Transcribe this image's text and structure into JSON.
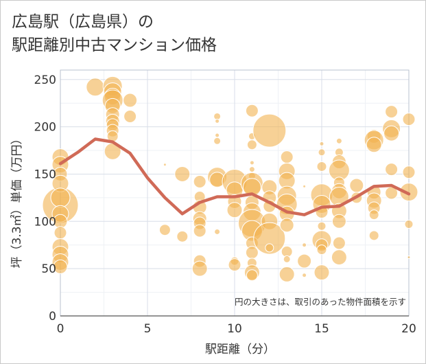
{
  "title_lines": [
    "広島駅（広島県）の",
    "駅距離別中古マンション価格"
  ],
  "note": "円の大きさは、取引のあった物件面積を示す",
  "colors": {
    "bubble": "#f2b350",
    "line": "#d06a57",
    "grid": "#d8dee8",
    "frame": "#c9c9c9"
  },
  "chart_data": {
    "type": "scatter",
    "xlabel": "駅距離（分）",
    "ylabel": "坪（3.3㎡）単価（万円）",
    "xlim": [
      0,
      20
    ],
    "ylim": [
      0,
      260
    ],
    "xticks": [
      0,
      5,
      10,
      15,
      20
    ],
    "yticks": [
      0,
      50,
      100,
      150,
      200,
      250
    ],
    "grid": true,
    "bubbles": [
      {
        "x": 0,
        "y": 117,
        "s": 26
      },
      {
        "x": 0,
        "y": 168,
        "s": 12
      },
      {
        "x": 0,
        "y": 160,
        "s": 12
      },
      {
        "x": 0,
        "y": 150,
        "s": 10
      },
      {
        "x": 0,
        "y": 140,
        "s": 12
      },
      {
        "x": 0,
        "y": 125,
        "s": 14
      },
      {
        "x": 0,
        "y": 108,
        "s": 12
      },
      {
        "x": 0,
        "y": 100,
        "s": 10
      },
      {
        "x": 0,
        "y": 88,
        "s": 9
      },
      {
        "x": 0,
        "y": 73,
        "s": 12
      },
      {
        "x": 0,
        "y": 65,
        "s": 12
      },
      {
        "x": 0,
        "y": 57,
        "s": 12
      },
      {
        "x": 0,
        "y": 52,
        "s": 10
      },
      {
        "x": 2,
        "y": 242,
        "s": 13
      },
      {
        "x": 3,
        "y": 243,
        "s": 14
      },
      {
        "x": 3,
        "y": 237,
        "s": 13
      },
      {
        "x": 3,
        "y": 232,
        "s": 12
      },
      {
        "x": 3,
        "y": 228,
        "s": 15
      },
      {
        "x": 3,
        "y": 222,
        "s": 11
      },
      {
        "x": 3,
        "y": 213,
        "s": 10
      },
      {
        "x": 3,
        "y": 206,
        "s": 10
      },
      {
        "x": 3,
        "y": 202,
        "s": 9
      },
      {
        "x": 3,
        "y": 196,
        "s": 9
      },
      {
        "x": 3,
        "y": 190,
        "s": 8
      },
      {
        "x": 3,
        "y": 174,
        "s": 12
      },
      {
        "x": 4,
        "y": 228,
        "s": 10
      },
      {
        "x": 4,
        "y": 211,
        "s": 9
      },
      {
        "x": 6,
        "y": 160,
        "s": 2
      },
      {
        "x": 6,
        "y": 91,
        "s": 8
      },
      {
        "x": 7,
        "y": 150,
        "s": 11
      },
      {
        "x": 7,
        "y": 84,
        "s": 8
      },
      {
        "x": 8,
        "y": 142,
        "s": 9
      },
      {
        "x": 8,
        "y": 126,
        "s": 8
      },
      {
        "x": 8,
        "y": 115,
        "s": 10
      },
      {
        "x": 8,
        "y": 103,
        "s": 10
      },
      {
        "x": 8,
        "y": 98,
        "s": 9
      },
      {
        "x": 8,
        "y": 90,
        "s": 9
      },
      {
        "x": 8,
        "y": 58,
        "s": 9
      },
      {
        "x": 8,
        "y": 50,
        "s": 11
      },
      {
        "x": 9,
        "y": 211,
        "s": 5
      },
      {
        "x": 9,
        "y": 206,
        "s": 3
      },
      {
        "x": 9,
        "y": 191,
        "s": 3
      },
      {
        "x": 9,
        "y": 185,
        "s": 5
      },
      {
        "x": 9,
        "y": 147,
        "s": 14
      },
      {
        "x": 9,
        "y": 144,
        "s": 11
      },
      {
        "x": 9,
        "y": 89,
        "s": 4
      },
      {
        "x": 10,
        "y": 142,
        "s": 18
      },
      {
        "x": 10,
        "y": 133,
        "s": 12
      },
      {
        "x": 10,
        "y": 121,
        "s": 10
      },
      {
        "x": 10,
        "y": 112,
        "s": 11
      },
      {
        "x": 10,
        "y": 58,
        "s": 6
      },
      {
        "x": 10,
        "y": 54,
        "s": 9
      },
      {
        "x": 11,
        "y": 217,
        "s": 9
      },
      {
        "x": 11,
        "y": 190,
        "s": 5
      },
      {
        "x": 11,
        "y": 181,
        "s": 7
      },
      {
        "x": 11,
        "y": 162,
        "s": 3
      },
      {
        "x": 11,
        "y": 155,
        "s": 4
      },
      {
        "x": 11,
        "y": 148,
        "s": 5
      },
      {
        "x": 11,
        "y": 140,
        "s": 16
      },
      {
        "x": 11,
        "y": 136,
        "s": 13
      },
      {
        "x": 11,
        "y": 120,
        "s": 10
      },
      {
        "x": 11,
        "y": 110,
        "s": 13
      },
      {
        "x": 11,
        "y": 98,
        "s": 20
      },
      {
        "x": 11,
        "y": 90,
        "s": 15
      },
      {
        "x": 11,
        "y": 77,
        "s": 9
      },
      {
        "x": 11,
        "y": 67,
        "s": 9
      },
      {
        "x": 11,
        "y": 56,
        "s": 7
      },
      {
        "x": 11,
        "y": 46,
        "s": 11
      },
      {
        "x": 11,
        "y": 43,
        "s": 8
      },
      {
        "x": 12,
        "y": 196,
        "s": 24
      },
      {
        "x": 12,
        "y": 136,
        "s": 11
      },
      {
        "x": 12,
        "y": 125,
        "s": 10
      },
      {
        "x": 12,
        "y": 116,
        "s": 9
      },
      {
        "x": 12,
        "y": 100,
        "s": 12
      },
      {
        "x": 12,
        "y": 82,
        "s": 23
      },
      {
        "x": 12,
        "y": 72,
        "s": 6
      },
      {
        "x": 13,
        "y": 168,
        "s": 9
      },
      {
        "x": 13,
        "y": 153,
        "s": 12
      },
      {
        "x": 13,
        "y": 143,
        "s": 12
      },
      {
        "x": 13,
        "y": 127,
        "s": 14
      },
      {
        "x": 13,
        "y": 118,
        "s": 15
      },
      {
        "x": 13,
        "y": 108,
        "s": 11
      },
      {
        "x": 13,
        "y": 96,
        "s": 10
      },
      {
        "x": 13,
        "y": 68,
        "s": 8
      },
      {
        "x": 13,
        "y": 60,
        "s": 5
      },
      {
        "x": 13,
        "y": 44,
        "s": 11
      },
      {
        "x": 14,
        "y": 137,
        "s": 2
      },
      {
        "x": 14,
        "y": 75,
        "s": 3
      },
      {
        "x": 14,
        "y": 58,
        "s": 10
      },
      {
        "x": 14,
        "y": 43,
        "s": 3
      },
      {
        "x": 15,
        "y": 182,
        "s": 3
      },
      {
        "x": 15,
        "y": 173,
        "s": 5
      },
      {
        "x": 15,
        "y": 158,
        "s": 7
      },
      {
        "x": 15,
        "y": 128,
        "s": 16
      },
      {
        "x": 15,
        "y": 118,
        "s": 13
      },
      {
        "x": 15,
        "y": 110,
        "s": 9
      },
      {
        "x": 15,
        "y": 95,
        "s": 6
      },
      {
        "x": 15,
        "y": 80,
        "s": 14
      },
      {
        "x": 15,
        "y": 75,
        "s": 9
      },
      {
        "x": 15,
        "y": 70,
        "s": 7
      },
      {
        "x": 15,
        "y": 46,
        "s": 11
      },
      {
        "x": 16,
        "y": 185,
        "s": 4
      },
      {
        "x": 16,
        "y": 173,
        "s": 6
      },
      {
        "x": 16,
        "y": 163,
        "s": 10
      },
      {
        "x": 16,
        "y": 154,
        "s": 15
      },
      {
        "x": 16,
        "y": 141,
        "s": 8
      },
      {
        "x": 16,
        "y": 132,
        "s": 11
      },
      {
        "x": 16,
        "y": 126,
        "s": 14
      },
      {
        "x": 16,
        "y": 111,
        "s": 11
      },
      {
        "x": 16,
        "y": 100,
        "s": 10
      },
      {
        "x": 16,
        "y": 77,
        "s": 9
      },
      {
        "x": 16,
        "y": 62,
        "s": 11
      },
      {
        "x": 17,
        "y": 138,
        "s": 10
      },
      {
        "x": 17,
        "y": 125,
        "s": 8
      },
      {
        "x": 18,
        "y": 190,
        "s": 10
      },
      {
        "x": 18,
        "y": 186,
        "s": 14
      },
      {
        "x": 18,
        "y": 181,
        "s": 11
      },
      {
        "x": 18,
        "y": 131,
        "s": 10
      },
      {
        "x": 18,
        "y": 122,
        "s": 11
      },
      {
        "x": 18,
        "y": 114,
        "s": 9
      },
      {
        "x": 18,
        "y": 107,
        "s": 7
      },
      {
        "x": 18,
        "y": 85,
        "s": 7
      },
      {
        "x": 19,
        "y": 216,
        "s": 9
      },
      {
        "x": 19,
        "y": 198,
        "s": 13
      },
      {
        "x": 19,
        "y": 193,
        "s": 11
      },
      {
        "x": 19,
        "y": 155,
        "s": 9
      },
      {
        "x": 19,
        "y": 130,
        "s": 9
      },
      {
        "x": 20,
        "y": 208,
        "s": 9
      },
      {
        "x": 20,
        "y": 152,
        "s": 9
      },
      {
        "x": 20,
        "y": 131,
        "s": 13
      },
      {
        "x": 20,
        "y": 97,
        "s": 6
      },
      {
        "x": 20,
        "y": 62,
        "s": 2
      }
    ],
    "line": {
      "x": [
        0,
        1,
        2,
        3,
        4,
        5,
        6,
        7,
        8,
        9,
        10,
        11,
        12,
        13,
        14,
        15,
        16,
        17,
        18,
        19,
        20
      ],
      "y": [
        161,
        173,
        187,
        184,
        172,
        146,
        125,
        108,
        120,
        126,
        126,
        129,
        120,
        110,
        107,
        115,
        116,
        126,
        137,
        138,
        129
      ]
    }
  }
}
